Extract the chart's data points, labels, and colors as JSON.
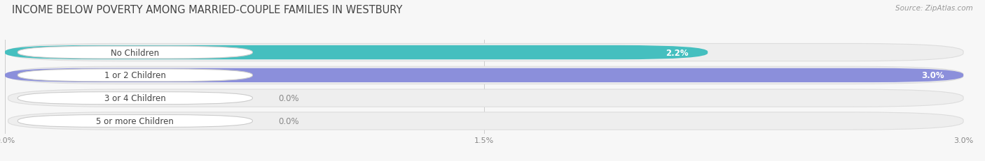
{
  "title": "INCOME BELOW POVERTY AMONG MARRIED-COUPLE FAMILIES IN WESTBURY",
  "source": "Source: ZipAtlas.com",
  "categories": [
    "No Children",
    "1 or 2 Children",
    "3 or 4 Children",
    "5 or more Children"
  ],
  "values": [
    2.2,
    3.0,
    0.0,
    0.0
  ],
  "bar_colors": [
    "#45bfbf",
    "#8b8fdb",
    "#f4a0b5",
    "#f5c98a"
  ],
  "xlim_max": 3.0,
  "xticks": [
    0.0,
    1.5,
    3.0
  ],
  "xtick_labels": [
    "0.0%",
    "1.5%",
    "3.0%"
  ],
  "bar_height": 0.62,
  "row_bg_color": "#ebebeb",
  "fig_bg_color": "#f7f7f7",
  "title_fontsize": 10.5,
  "label_fontsize": 8.5,
  "value_fontsize": 8.5
}
